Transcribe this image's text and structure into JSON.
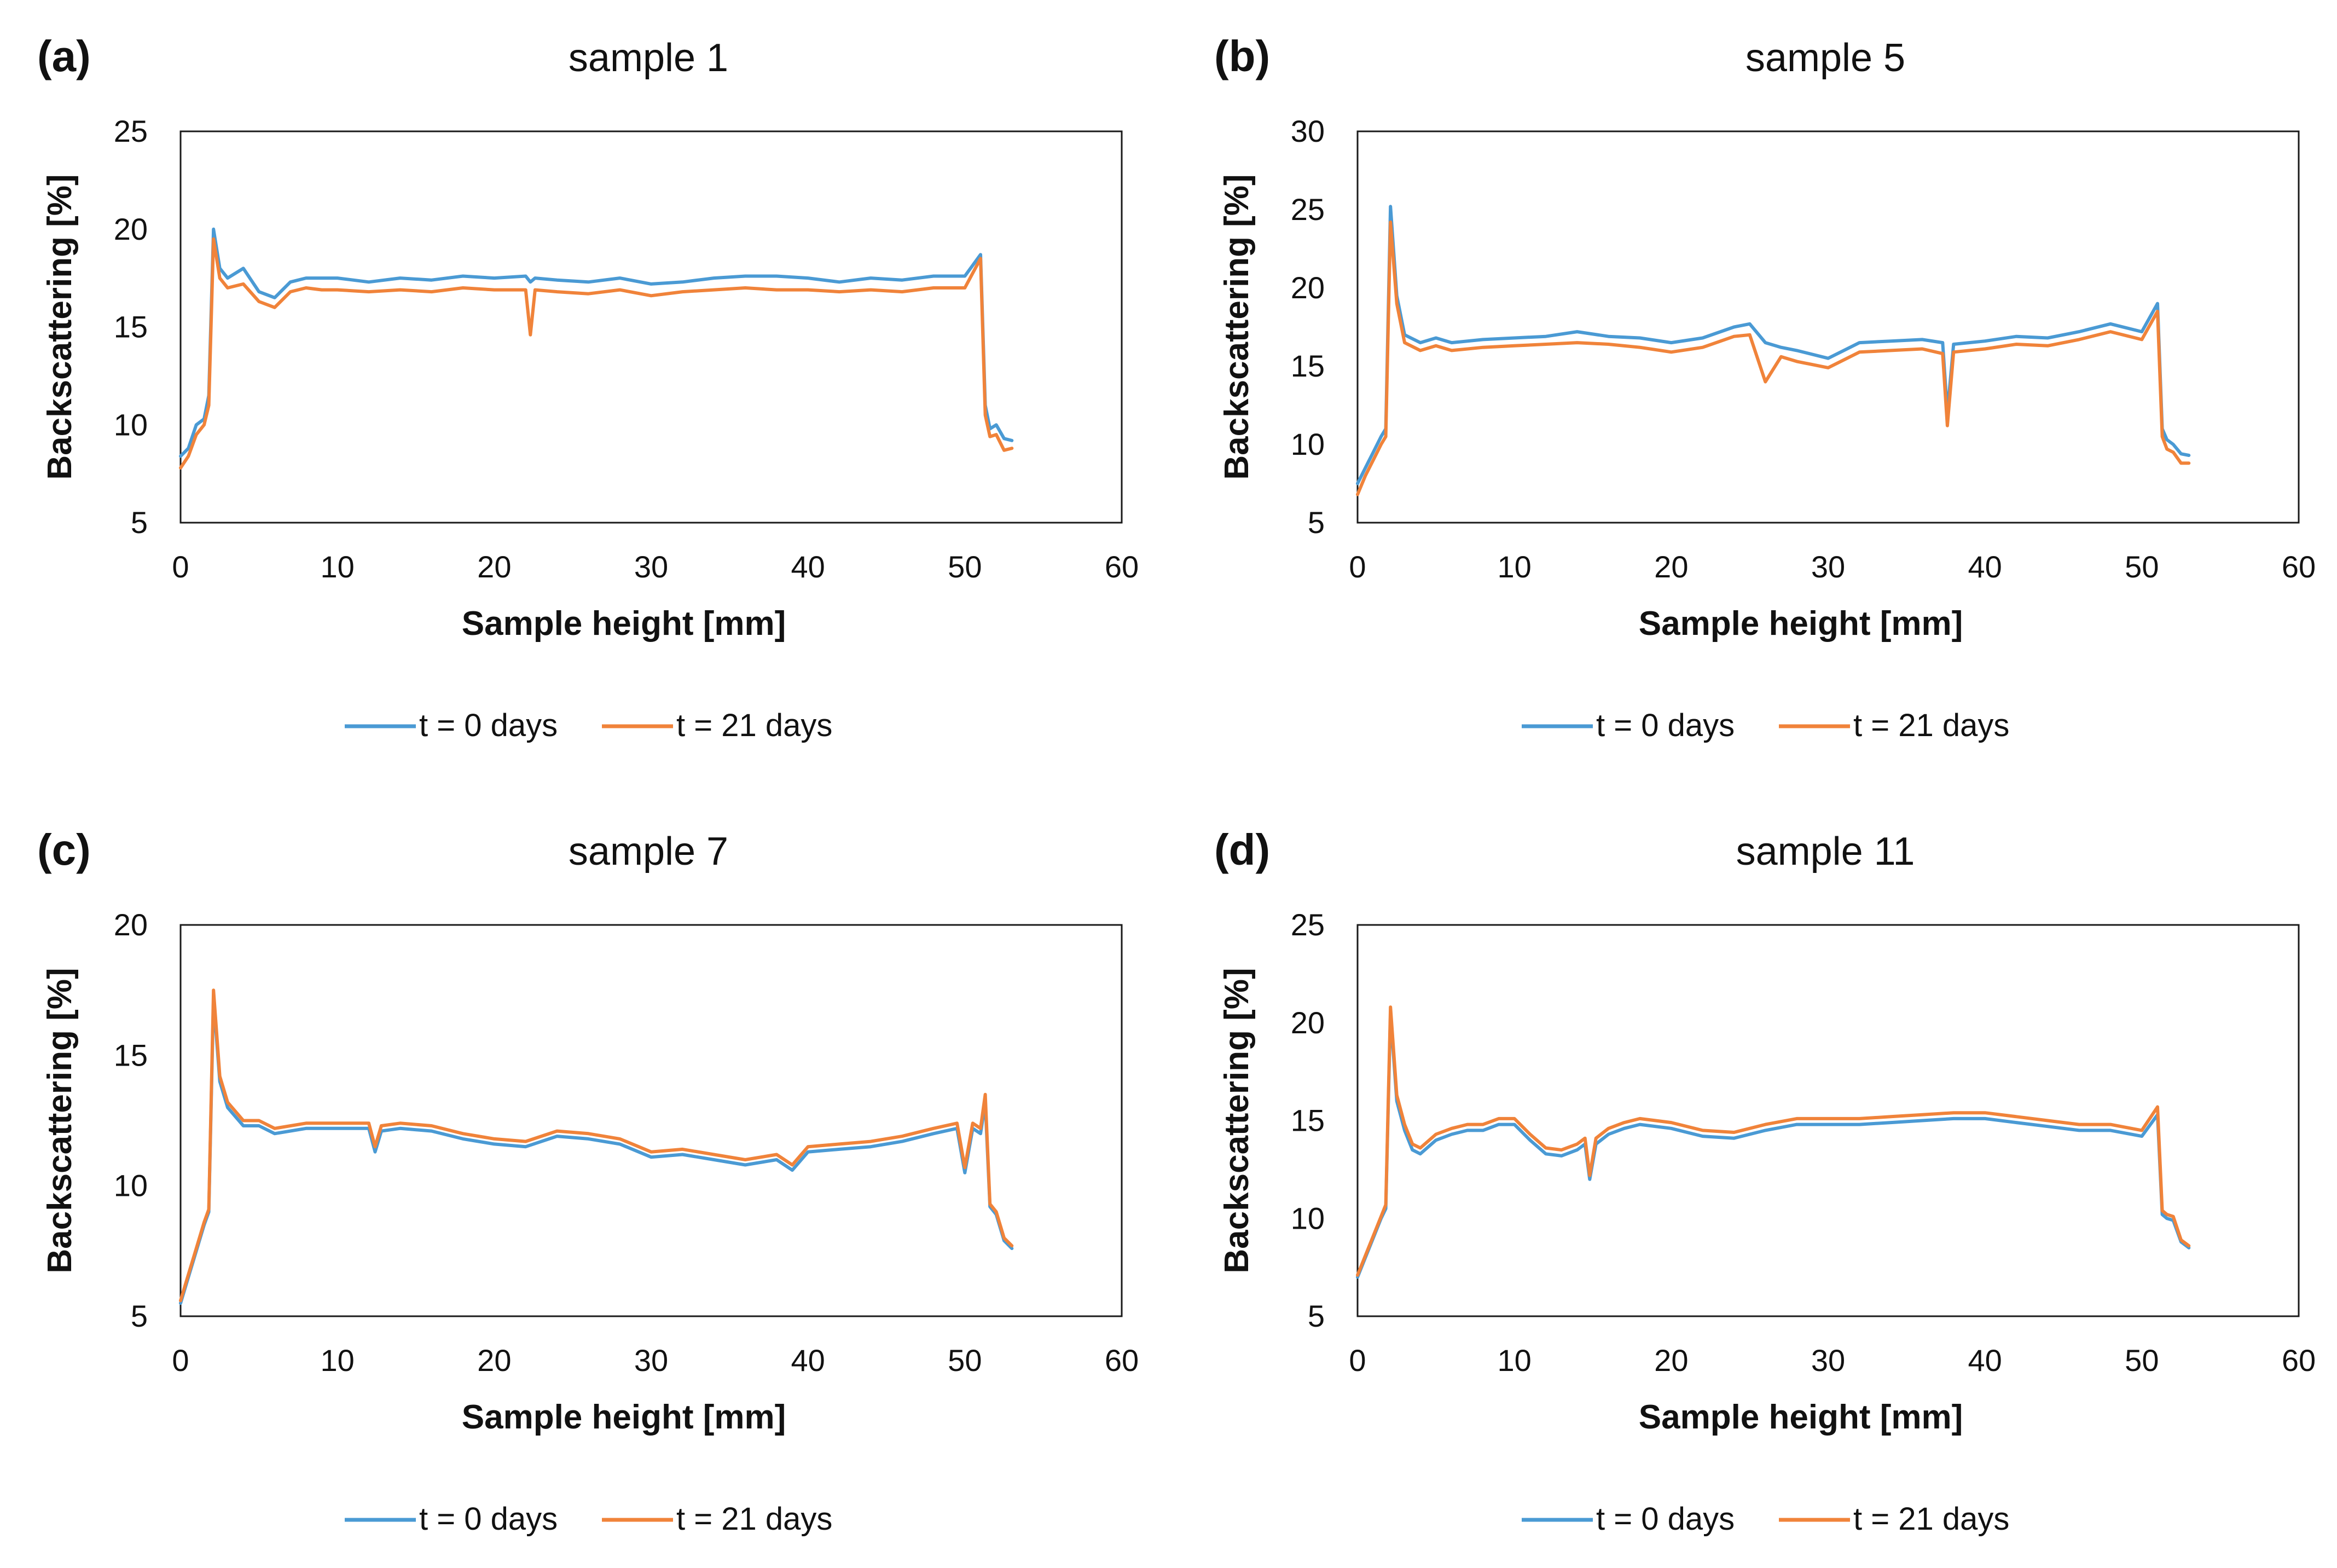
{
  "chart_data": [
    {
      "panel": "(a)",
      "type": "line",
      "title": "sample 1",
      "xlabel": "Sample height [mm]",
      "ylabel": "Backscattering [%]",
      "xlim": [
        0,
        60
      ],
      "ylim": [
        5,
        25
      ],
      "xticks": [
        "0",
        "10",
        "20",
        "30",
        "40",
        "50",
        "60"
      ],
      "yticks": [
        "5",
        "10",
        "15",
        "20",
        "25"
      ],
      "grid": false,
      "legend": "bottom-center",
      "series": [
        {
          "name": "t = 0 days",
          "color": "#4a9ad4",
          "x": [
            0,
            0.5,
            1,
            1.5,
            1.8,
            2.1,
            2.5,
            3,
            4,
            5,
            6,
            7,
            8,
            9,
            10,
            12,
            14,
            16,
            18,
            20,
            22,
            22.3,
            22.6,
            24,
            26,
            28,
            30,
            32,
            34,
            36,
            38,
            40,
            42,
            44,
            46,
            48,
            50,
            51,
            51.3,
            51.6,
            52,
            52.5,
            53
          ],
          "y": [
            8.4,
            8.8,
            10,
            10.3,
            11.5,
            20,
            18,
            17.5,
            18,
            16.8,
            16.5,
            17.3,
            17.5,
            17.5,
            17.5,
            17.3,
            17.5,
            17.4,
            17.6,
            17.5,
            17.6,
            17.3,
            17.5,
            17.4,
            17.3,
            17.5,
            17.2,
            17.3,
            17.5,
            17.6,
            17.6,
            17.5,
            17.3,
            17.5,
            17.4,
            17.6,
            17.6,
            18.7,
            11,
            9.8,
            10,
            9.3,
            9.2
          ]
        },
        {
          "name": "t = 21 days",
          "color": "#f0833a",
          "x": [
            0,
            0.5,
            1,
            1.5,
            1.8,
            2.1,
            2.5,
            3,
            4,
            5,
            6,
            7,
            8,
            9,
            10,
            12,
            14,
            16,
            18,
            20,
            22,
            22.3,
            22.6,
            24,
            26,
            28,
            30,
            32,
            34,
            36,
            38,
            40,
            42,
            44,
            46,
            48,
            50,
            51,
            51.3,
            51.6,
            52,
            52.5,
            53
          ],
          "y": [
            7.8,
            8.4,
            9.5,
            10,
            11,
            19.5,
            17.5,
            17,
            17.2,
            16.3,
            16,
            16.8,
            17,
            16.9,
            16.9,
            16.8,
            16.9,
            16.8,
            17,
            16.9,
            16.9,
            14.6,
            16.9,
            16.8,
            16.7,
            16.9,
            16.6,
            16.8,
            16.9,
            17,
            16.9,
            16.9,
            16.8,
            16.9,
            16.8,
            17,
            17,
            18.5,
            10.5,
            9.4,
            9.5,
            8.7,
            8.8
          ]
        }
      ]
    },
    {
      "panel": "(b)",
      "type": "line",
      "title": "sample 5",
      "xlabel": "Sample height [mm]",
      "ylabel": "Backscattering [%]",
      "xlim": [
        0,
        60
      ],
      "ylim": [
        5,
        30
      ],
      "xticks": [
        "0",
        "10",
        "20",
        "30",
        "40",
        "50",
        "60"
      ],
      "yticks": [
        "5",
        "10",
        "15",
        "20",
        "25",
        "30"
      ],
      "grid": false,
      "legend": "bottom-center",
      "series": [
        {
          "name": "t = 0 days",
          "color": "#4a9ad4",
          "x": [
            0,
            0.5,
            1,
            1.5,
            1.8,
            2.1,
            2.5,
            3,
            4,
            5,
            6,
            8,
            10,
            12,
            14,
            16,
            18,
            20,
            22,
            24,
            25,
            26,
            27,
            28,
            30,
            32,
            34,
            36,
            37.3,
            37.6,
            38,
            40,
            42,
            44,
            46,
            48,
            50,
            51,
            51.3,
            51.6,
            52,
            52.5,
            53
          ],
          "y": [
            7.5,
            8.5,
            9.5,
            10.5,
            11,
            25.2,
            19.5,
            17,
            16.5,
            16.8,
            16.5,
            16.7,
            16.8,
            16.9,
            17.2,
            16.9,
            16.8,
            16.5,
            16.8,
            17.5,
            17.7,
            16.5,
            16.2,
            16,
            15.5,
            16.5,
            16.6,
            16.7,
            16.5,
            12,
            16.4,
            16.6,
            16.9,
            16.8,
            17.2,
            17.7,
            17.2,
            19,
            11,
            10.3,
            10,
            9.4,
            9.3
          ]
        },
        {
          "name": "t = 21 days",
          "color": "#f0833a",
          "x": [
            0,
            0.5,
            1,
            1.5,
            1.8,
            2.1,
            2.5,
            3,
            4,
            5,
            6,
            8,
            10,
            12,
            14,
            16,
            18,
            20,
            22,
            24,
            25,
            26,
            27,
            28,
            30,
            32,
            34,
            36,
            37.3,
            37.6,
            38,
            40,
            42,
            44,
            46,
            48,
            50,
            51,
            51.3,
            51.6,
            52,
            52.5,
            53
          ],
          "y": [
            6.8,
            8,
            9,
            10,
            10.5,
            24.2,
            19,
            16.5,
            16,
            16.3,
            16,
            16.2,
            16.3,
            16.4,
            16.5,
            16.4,
            16.2,
            15.9,
            16.2,
            16.9,
            17,
            14,
            15.6,
            15.3,
            14.9,
            15.9,
            16,
            16.1,
            15.8,
            11.2,
            15.9,
            16.1,
            16.4,
            16.3,
            16.7,
            17.2,
            16.7,
            18.5,
            10.5,
            9.7,
            9.5,
            8.8,
            8.8
          ]
        }
      ]
    },
    {
      "panel": "(c)",
      "type": "line",
      "title": "sample 7",
      "xlabel": "Sample height [mm]",
      "ylabel": "Backscattering [%]",
      "xlim": [
        0,
        60
      ],
      "ylim": [
        5,
        20
      ],
      "xticks": [
        "0",
        "10",
        "20",
        "30",
        "40",
        "50",
        "60"
      ],
      "yticks": [
        "5",
        "10",
        "15",
        "20"
      ],
      "grid": false,
      "legend": "bottom-center",
      "series": [
        {
          "name": "t = 0 days",
          "color": "#4a9ad4",
          "x": [
            0,
            0.5,
            1,
            1.5,
            1.8,
            2.1,
            2.5,
            3,
            4,
            5,
            6,
            8,
            10,
            12,
            12.4,
            12.8,
            14,
            16,
            18,
            20,
            22,
            24,
            26,
            28,
            30,
            32,
            34,
            36,
            38,
            39,
            40,
            42,
            44,
            46,
            48,
            49.5,
            50,
            50.5,
            51,
            51.3,
            51.6,
            52,
            52.5,
            53
          ],
          "y": [
            5.5,
            6.5,
            7.5,
            8.5,
            9,
            17.2,
            14,
            13,
            12.3,
            12.3,
            12,
            12.2,
            12.2,
            12.2,
            11.3,
            12.1,
            12.2,
            12.1,
            11.8,
            11.6,
            11.5,
            11.9,
            11.8,
            11.6,
            11.1,
            11.2,
            11,
            10.8,
            11,
            10.6,
            11.3,
            11.4,
            11.5,
            11.7,
            12,
            12.2,
            10.5,
            12.2,
            12,
            13.2,
            9.2,
            8.9,
            7.9,
            7.6
          ]
        },
        {
          "name": "t = 21 days",
          "color": "#f0833a",
          "x": [
            0,
            0.5,
            1,
            1.5,
            1.8,
            2.1,
            2.5,
            3,
            4,
            5,
            6,
            8,
            10,
            12,
            12.4,
            12.8,
            14,
            16,
            18,
            20,
            22,
            24,
            26,
            28,
            30,
            32,
            34,
            36,
            38,
            39,
            40,
            42,
            44,
            46,
            48,
            49.5,
            50,
            50.5,
            51,
            51.3,
            51.6,
            52,
            52.5,
            53
          ],
          "y": [
            5.6,
            6.6,
            7.6,
            8.6,
            9.1,
            17.5,
            14.2,
            13.2,
            12.5,
            12.5,
            12.2,
            12.4,
            12.4,
            12.4,
            11.5,
            12.3,
            12.4,
            12.3,
            12,
            11.8,
            11.7,
            12.1,
            12,
            11.8,
            11.3,
            11.4,
            11.2,
            11,
            11.2,
            10.8,
            11.5,
            11.6,
            11.7,
            11.9,
            12.2,
            12.4,
            10.7,
            12.4,
            12.2,
            13.5,
            9.3,
            9,
            8,
            7.7
          ]
        }
      ]
    },
    {
      "panel": "(d)",
      "type": "line",
      "title": "sample 11",
      "xlabel": "Sample height [mm]",
      "ylabel": "Backscattering [%]",
      "xlim": [
        0,
        60
      ],
      "ylim": [
        5,
        25
      ],
      "xticks": [
        "0",
        "10",
        "20",
        "30",
        "40",
        "50",
        "60"
      ],
      "yticks": [
        "5",
        "10",
        "15",
        "20",
        "25"
      ],
      "grid": false,
      "legend": "bottom-center",
      "series": [
        {
          "name": "t = 0 days",
          "color": "#4a9ad4",
          "x": [
            0,
            0.5,
            1,
            1.5,
            1.8,
            2.1,
            2.5,
            3,
            3.5,
            4,
            5,
            6,
            7,
            8,
            9,
            10,
            11,
            12,
            13,
            14,
            14.5,
            14.8,
            15.2,
            16,
            17,
            18,
            20,
            22,
            24,
            26,
            28,
            30,
            32,
            34,
            36,
            38,
            40,
            42,
            44,
            46,
            48,
            50,
            51,
            51.3,
            51.6,
            52,
            52.5,
            53
          ],
          "y": [
            7,
            8,
            9,
            10,
            10.5,
            20.5,
            16,
            14.5,
            13.5,
            13.3,
            14,
            14.3,
            14.5,
            14.5,
            14.8,
            14.8,
            14,
            13.3,
            13.2,
            13.5,
            13.8,
            12,
            13.8,
            14.3,
            14.6,
            14.8,
            14.6,
            14.2,
            14.1,
            14.5,
            14.8,
            14.8,
            14.8,
            14.9,
            15,
            15.1,
            15.1,
            14.9,
            14.7,
            14.5,
            14.5,
            14.2,
            15.3,
            10.2,
            10,
            9.9,
            8.8,
            8.5
          ]
        },
        {
          "name": "t = 21 days",
          "color": "#f0833a",
          "x": [
            0,
            0.5,
            1,
            1.5,
            1.8,
            2.1,
            2.5,
            3,
            3.5,
            4,
            5,
            6,
            7,
            8,
            9,
            10,
            11,
            12,
            13,
            14,
            14.5,
            14.8,
            15.2,
            16,
            17,
            18,
            20,
            22,
            24,
            26,
            28,
            30,
            32,
            34,
            36,
            38,
            40,
            42,
            44,
            46,
            48,
            50,
            51,
            51.3,
            51.6,
            52,
            52.5,
            53
          ],
          "y": [
            7.1,
            8.1,
            9.1,
            10.1,
            10.7,
            20.8,
            16.3,
            14.8,
            13.8,
            13.6,
            14.3,
            14.6,
            14.8,
            14.8,
            15.1,
            15.1,
            14.3,
            13.6,
            13.5,
            13.8,
            14.1,
            12.2,
            14.1,
            14.6,
            14.9,
            15.1,
            14.9,
            14.5,
            14.4,
            14.8,
            15.1,
            15.1,
            15.1,
            15.2,
            15.3,
            15.4,
            15.4,
            15.2,
            15,
            14.8,
            14.8,
            14.5,
            15.7,
            10.4,
            10.2,
            10.1,
            8.9,
            8.6
          ]
        }
      ]
    }
  ]
}
